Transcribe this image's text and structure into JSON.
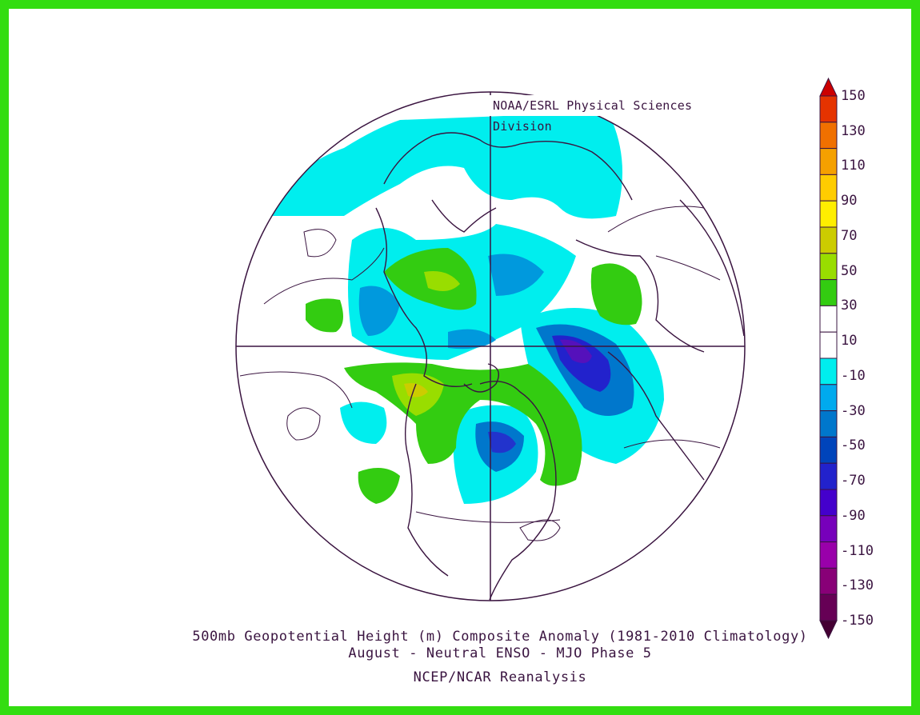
{
  "credit": "NOAA/ESRL Physical Sciences Division",
  "caption": {
    "line1": "500mb Geopotential Height (m) Composite Anomaly (1981-2010 Climatology)",
    "line2": "August - Neutral ENSO - MJO Phase 5",
    "line3": "NCEP/NCAR Reanalysis"
  },
  "colorbar": {
    "labels": [
      "150",
      "130",
      "110",
      "90",
      "70",
      "50",
      "30",
      "10",
      "-10",
      "-30",
      "-50",
      "-70",
      "-90",
      "-110",
      "-130",
      "-150"
    ],
    "colors": [
      "#cc0000",
      "#e53300",
      "#f07000",
      "#f5a000",
      "#ffcc00",
      "#ffee00",
      "#cccc00",
      "#99dd00",
      "#33cc11",
      "#ffffff",
      "#ffffff",
      "#00eeee",
      "#00aaee",
      "#0077cc",
      "#0044bb",
      "#2222cc",
      "#4400cc",
      "#7700bb",
      "#9900aa",
      "#880077",
      "#660055",
      "#440033"
    ]
  }
}
